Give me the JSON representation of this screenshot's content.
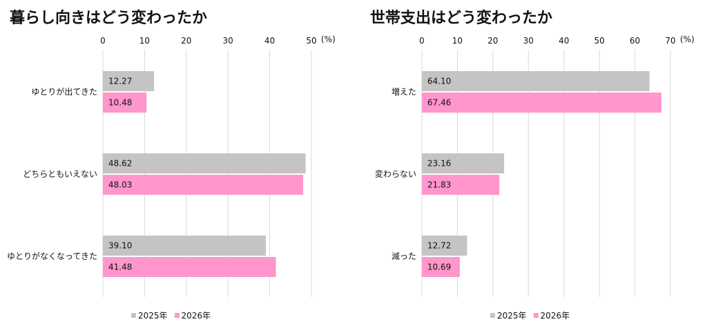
{
  "colors": {
    "s2025": "#c4c4c4",
    "s2026": "#ff96cc",
    "grid": "#d9d9d9"
  },
  "chart_data": [
    {
      "type": "bar",
      "orientation": "horizontal",
      "title": "暮らし向きはどう変わったか",
      "unit": "(%)",
      "xlim": [
        0,
        50
      ],
      "ticks": [
        0,
        10,
        20,
        30,
        40,
        50
      ],
      "categories": [
        "ゆとりが出てきた",
        "どちらともいえない",
        "ゆとりがなくなってきた"
      ],
      "series": [
        {
          "name": "2025年",
          "values": [
            12.27,
            48.62,
            39.1
          ],
          "labels": [
            "12.27",
            "48.62",
            "39.10"
          ]
        },
        {
          "name": "2026年",
          "values": [
            10.48,
            48.03,
            41.48
          ],
          "labels": [
            "10.48",
            "48.03",
            "41.48"
          ]
        }
      ],
      "grid": true,
      "legend": "bottom"
    },
    {
      "type": "bar",
      "orientation": "horizontal",
      "title": "世帯支出はどう変わったか",
      "unit": "(%)",
      "xlim": [
        0,
        70
      ],
      "ticks": [
        0,
        10,
        20,
        30,
        40,
        50,
        60,
        70
      ],
      "categories": [
        "増えた",
        "変わらない",
        "減った"
      ],
      "series": [
        {
          "name": "2025年",
          "values": [
            64.1,
            23.16,
            12.72
          ],
          "labels": [
            "64.10",
            "23.16",
            "12.72"
          ]
        },
        {
          "name": "2026年",
          "values": [
            67.46,
            21.83,
            10.69
          ],
          "labels": [
            "67.46",
            "21.83",
            "10.69"
          ]
        }
      ],
      "grid": true,
      "legend": "bottom"
    }
  ]
}
